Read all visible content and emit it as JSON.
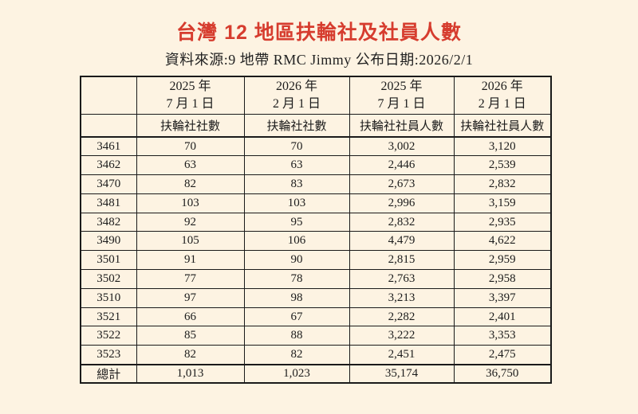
{
  "title": "台灣 12 地區扶輪社及社員人數",
  "subtitle": "資料來源:9 地帶 RMC Jimmy 公布日期:2026/2/1",
  "colors": {
    "background": "#FDF3E2",
    "title_red": "#D63C2E",
    "text": "#1C1C1C",
    "table_border": "#1A1A1A"
  },
  "chart_data": {
    "type": "table",
    "title": "台灣 12 地區扶輪社及社員人數",
    "source_note": "資料來源:9 地帶 RMC Jimmy 公布日期:2026/2/1",
    "row_header_label": "",
    "column_groups": [
      {
        "year": "2025 年",
        "date": "7 月 1 日",
        "measure": "扶輪社社數"
      },
      {
        "year": "2026 年",
        "date": "2 月 1 日",
        "measure": "扶輪社社數"
      },
      {
        "year": "2025 年",
        "date": "7 月 1 日",
        "measure": "扶輪社社員人數"
      },
      {
        "year": "2026 年",
        "date": "2 月 1 日",
        "measure": "扶輪社社員人數"
      }
    ],
    "rows": [
      {
        "district": "3461",
        "values": [
          "70",
          "70",
          "3,002",
          "3,120"
        ]
      },
      {
        "district": "3462",
        "values": [
          "63",
          "63",
          "2,446",
          "2,539"
        ]
      },
      {
        "district": "3470",
        "values": [
          "82",
          "83",
          "2,673",
          "2,832"
        ]
      },
      {
        "district": "3481",
        "values": [
          "103",
          "103",
          "2,996",
          "3,159"
        ]
      },
      {
        "district": "3482",
        "values": [
          "92",
          "95",
          "2,832",
          "2,935"
        ]
      },
      {
        "district": "3490",
        "values": [
          "105",
          "106",
          "4,479",
          "4,622"
        ]
      },
      {
        "district": "3501",
        "values": [
          "91",
          "90",
          "2,815",
          "2,959"
        ]
      },
      {
        "district": "3502",
        "values": [
          "77",
          "78",
          "2,763",
          "2,958"
        ]
      },
      {
        "district": "3510",
        "values": [
          "97",
          "98",
          "3,213",
          "3,397"
        ]
      },
      {
        "district": "3521",
        "values": [
          "66",
          "67",
          "2,282",
          "2,401"
        ]
      },
      {
        "district": "3522",
        "values": [
          "85",
          "88",
          "3,222",
          "3,353"
        ]
      },
      {
        "district": "3523",
        "values": [
          "82",
          "82",
          "2,451",
          "2,475"
        ]
      }
    ],
    "total_row": {
      "district": "總計",
      "values": [
        "1,013",
        "1,023",
        "35,174",
        "36,750"
      ]
    }
  }
}
